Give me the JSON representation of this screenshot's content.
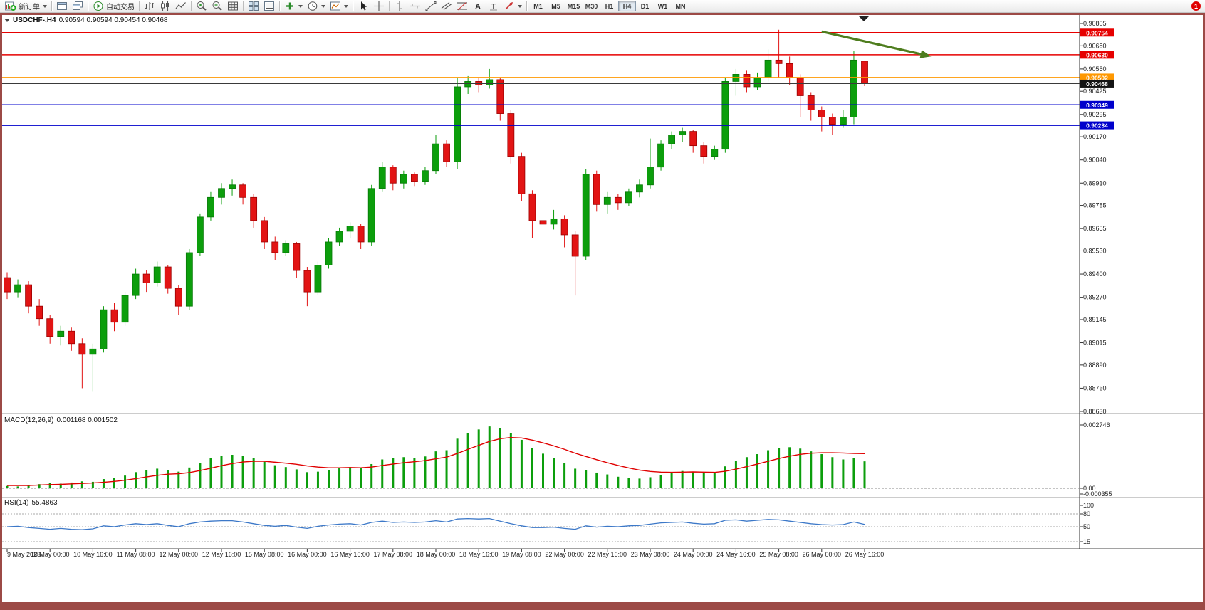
{
  "toolbar": {
    "groups": [
      [
        "new-order"
      ],
      [
        "chart-window",
        "cascade-windows"
      ],
      [
        "autotrading"
      ],
      [
        "bar-chart",
        "candlestick-chart",
        "line-chart"
      ],
      [
        "zoom-in",
        "zoom-out",
        "grid"
      ],
      [
        "tile-windows",
        "data-window"
      ],
      [
        "add-indicator",
        "clock",
        "template"
      ],
      [
        "cursor",
        "crosshair"
      ],
      [
        "vertical-line",
        "horizontal-line",
        "trend-line",
        "channel",
        "fibonacci",
        "text-tool",
        "label-tool",
        "arrow-tool"
      ]
    ],
    "labels": {
      "new-order": "新订单",
      "autotrading": "自动交易"
    },
    "carets": [
      "new-order",
      "add-indicator",
      "clock",
      "template",
      "arrow-tool"
    ],
    "tool_letters": {
      "text_tool": "A",
      "label_tool": "T"
    },
    "timeframes": [
      "M1",
      "M5",
      "M15",
      "M30",
      "H1",
      "H4",
      "D1",
      "W1",
      "MN"
    ],
    "active_timeframe": "H4",
    "notification_badge": "1"
  },
  "chart": {
    "symbol_period": "USDCHF-,H4",
    "ohlc": "0.90594 0.90594 0.90454 0.90468",
    "price_axis": [
      "0.90805",
      "0.90680",
      "0.90550",
      "0.90425",
      "0.90295",
      "0.90170",
      "0.90040",
      "0.89910",
      "0.89785",
      "0.89655",
      "0.89530",
      "0.89400",
      "0.89270",
      "0.89145",
      "0.89015",
      "0.88890",
      "0.88760",
      "0.88630"
    ],
    "hlines": [
      {
        "price": 0.90754,
        "label": "0.90754",
        "color": "#E60000"
      },
      {
        "price": 0.9063,
        "label": "0.90630",
        "color": "#E60000"
      },
      {
        "price": 0.90502,
        "label": "0.90502",
        "color": "#FF9800"
      },
      {
        "price": 0.90349,
        "label": "0.90349",
        "color": "#0000CC"
      },
      {
        "price": 0.90234,
        "label": "0.90234",
        "color": "#0000CC"
      }
    ],
    "bid": {
      "price": 0.90468,
      "label": "0.90468",
      "line_color": "#3a3a3a",
      "box_color": "#141414"
    },
    "annotation_arrow": {
      "from_bar": 76,
      "from_price": 0.9076,
      "to_bar": 85.5,
      "to_price": 0.9063,
      "color": "#4E7D1E"
    }
  },
  "macd": {
    "name": "MACD(12,26,9)",
    "values": "0.001168 0.001502",
    "axis": [
      "0.002746",
      "0.00",
      "-0.000355"
    ]
  },
  "rsi": {
    "name": "RSI(14)",
    "value": "55.4863",
    "axis": [
      "100",
      "80",
      "50",
      "15"
    ],
    "levels": [
      80,
      50,
      15
    ]
  },
  "chart_data": {
    "type": "candlestick",
    "symbol": "USDCHF",
    "period": "H4",
    "x_labels": [
      "9 May 2023",
      "10 May 00:00",
      "10 May 16:00",
      "11 May 08:00",
      "12 May 00:00",
      "12 May 16:00",
      "15 May 08:00",
      "16 May 00:00",
      "16 May 16:00",
      "17 May 08:00",
      "18 May 00:00",
      "18 May 16:00",
      "19 May 08:00",
      "22 May 00:00",
      "22 May 16:00",
      "23 May 08:00",
      "24 May 00:00",
      "24 May 16:00",
      "25 May 08:00",
      "26 May 00:00",
      "26 May 16:00"
    ],
    "candles": [
      [
        0.8938,
        0.8941,
        0.8926,
        0.893
      ],
      [
        0.893,
        0.8937,
        0.8927,
        0.8934
      ],
      [
        0.8934,
        0.8936,
        0.8918,
        0.8922
      ],
      [
        0.8922,
        0.8926,
        0.8911,
        0.8915
      ],
      [
        0.8915,
        0.8917,
        0.8901,
        0.8905
      ],
      [
        0.8905,
        0.8911,
        0.89,
        0.8908
      ],
      [
        0.8908,
        0.891,
        0.8897,
        0.8901
      ],
      [
        0.8901,
        0.8904,
        0.8876,
        0.8895
      ],
      [
        0.8895,
        0.8901,
        0.8874,
        0.8898
      ],
      [
        0.8898,
        0.8922,
        0.8896,
        0.892
      ],
      [
        0.892,
        0.8924,
        0.8908,
        0.8913
      ],
      [
        0.8913,
        0.893,
        0.8911,
        0.8928
      ],
      [
        0.8928,
        0.8943,
        0.8926,
        0.894
      ],
      [
        0.894,
        0.8942,
        0.893,
        0.8935
      ],
      [
        0.8935,
        0.8947,
        0.8933,
        0.8944
      ],
      [
        0.8944,
        0.8945,
        0.8929,
        0.8932
      ],
      [
        0.8932,
        0.8934,
        0.8917,
        0.8922
      ],
      [
        0.8922,
        0.8954,
        0.892,
        0.8952
      ],
      [
        0.8952,
        0.8974,
        0.895,
        0.8972
      ],
      [
        0.8972,
        0.8986,
        0.897,
        0.8983
      ],
      [
        0.8983,
        0.8991,
        0.8979,
        0.8988
      ],
      [
        0.8988,
        0.8993,
        0.8984,
        0.899
      ],
      [
        0.899,
        0.8991,
        0.8979,
        0.8983
      ],
      [
        0.8983,
        0.8985,
        0.8966,
        0.897
      ],
      [
        0.897,
        0.8972,
        0.8954,
        0.8958
      ],
      [
        0.8958,
        0.8961,
        0.8948,
        0.8952
      ],
      [
        0.8952,
        0.8959,
        0.895,
        0.8957
      ],
      [
        0.8957,
        0.8958,
        0.8938,
        0.8942
      ],
      [
        0.8942,
        0.8944,
        0.8922,
        0.893
      ],
      [
        0.893,
        0.8947,
        0.8928,
        0.8945
      ],
      [
        0.8945,
        0.896,
        0.8943,
        0.8958
      ],
      [
        0.8958,
        0.8966,
        0.8956,
        0.8964
      ],
      [
        0.8964,
        0.8969,
        0.896,
        0.8967
      ],
      [
        0.8967,
        0.8968,
        0.8954,
        0.8958
      ],
      [
        0.8958,
        0.899,
        0.8956,
        0.8988
      ],
      [
        0.8988,
        0.9003,
        0.8986,
        0.9
      ],
      [
        0.9,
        0.9001,
        0.8987,
        0.8991
      ],
      [
        0.8991,
        0.8998,
        0.8988,
        0.8996
      ],
      [
        0.8996,
        0.8997,
        0.8989,
        0.8992
      ],
      [
        0.8992,
        0.9,
        0.899,
        0.8998
      ],
      [
        0.8998,
        0.9018,
        0.8996,
        0.9013
      ],
      [
        0.9013,
        0.9015,
        0.9,
        0.9003
      ],
      [
        0.9003,
        0.905,
        0.8999,
        0.9045
      ],
      [
        0.9045,
        0.9051,
        0.9041,
        0.9048
      ],
      [
        0.9048,
        0.905,
        0.9042,
        0.9046
      ],
      [
        0.9046,
        0.9055,
        0.9044,
        0.9049
      ],
      [
        0.9049,
        0.905,
        0.9026,
        0.903
      ],
      [
        0.903,
        0.9032,
        0.9002,
        0.9006
      ],
      [
        0.9006,
        0.9008,
        0.8981,
        0.8985
      ],
      [
        0.8985,
        0.8987,
        0.896,
        0.897
      ],
      [
        0.897,
        0.8975,
        0.8964,
        0.8968
      ],
      [
        0.8968,
        0.8976,
        0.8965,
        0.8971
      ],
      [
        0.8971,
        0.8973,
        0.8955,
        0.8962
      ],
      [
        0.8962,
        0.8964,
        0.8928,
        0.895
      ],
      [
        0.895,
        0.8999,
        0.8948,
        0.8996
      ],
      [
        0.8996,
        0.8998,
        0.8975,
        0.8979
      ],
      [
        0.8979,
        0.8986,
        0.8974,
        0.8983
      ],
      [
        0.8983,
        0.8985,
        0.8976,
        0.898
      ],
      [
        0.898,
        0.8988,
        0.8978,
        0.8986
      ],
      [
        0.8986,
        0.8993,
        0.8983,
        0.899
      ],
      [
        0.899,
        0.9016,
        0.8988,
        0.9
      ],
      [
        0.9,
        0.9015,
        0.8998,
        0.9013
      ],
      [
        0.9013,
        0.902,
        0.901,
        0.9018
      ],
      [
        0.9018,
        0.9022,
        0.9014,
        0.902
      ],
      [
        0.902,
        0.9021,
        0.9008,
        0.9012
      ],
      [
        0.9012,
        0.9014,
        0.9002,
        0.9006
      ],
      [
        0.9006,
        0.9012,
        0.9004,
        0.901
      ],
      [
        0.901,
        0.905,
        0.9008,
        0.9048
      ],
      [
        0.9048,
        0.9055,
        0.904,
        0.9052
      ],
      [
        0.9052,
        0.9054,
        0.9042,
        0.9045
      ],
      [
        0.9045,
        0.9053,
        0.9043,
        0.905
      ],
      [
        0.905,
        0.9066,
        0.9048,
        0.906
      ],
      [
        0.906,
        0.9077,
        0.905,
        0.9058
      ],
      [
        0.9058,
        0.9062,
        0.9046,
        0.905
      ],
      [
        0.905,
        0.9052,
        0.9028,
        0.904
      ],
      [
        0.904,
        0.9042,
        0.9026,
        0.9032
      ],
      [
        0.9032,
        0.9034,
        0.902,
        0.9028
      ],
      [
        0.9028,
        0.903,
        0.9018,
        0.9024
      ],
      [
        0.9024,
        0.9032,
        0.9022,
        0.9028
      ],
      [
        0.9028,
        0.9065,
        0.9024,
        0.906
      ],
      [
        0.90594,
        0.90594,
        0.90454,
        0.90468
      ]
    ],
    "macd_histogram": [
      0.0001,
      8e-05,
      0.00012,
      0.00018,
      0.00022,
      0.0002,
      0.00025,
      0.0003,
      0.00028,
      0.0004,
      0.00045,
      0.00055,
      0.0007,
      0.00078,
      0.00085,
      0.0008,
      0.00072,
      0.0009,
      0.0011,
      0.0013,
      0.0014,
      0.00145,
      0.0014,
      0.0013,
      0.00115,
      0.001,
      0.00092,
      0.00082,
      0.0007,
      0.00072,
      0.0008,
      0.00088,
      0.00092,
      0.00088,
      0.00105,
      0.00125,
      0.0013,
      0.00135,
      0.00132,
      0.00138,
      0.0016,
      0.00165,
      0.00215,
      0.0024,
      0.00255,
      0.00268,
      0.00262,
      0.0024,
      0.0021,
      0.00175,
      0.0015,
      0.00132,
      0.0011,
      0.00085,
      0.0008,
      0.00068,
      0.0006,
      0.0005,
      0.00045,
      0.00042,
      0.00048,
      0.00058,
      0.00068,
      0.00075,
      0.00072,
      0.00065,
      0.00065,
      0.00095,
      0.0012,
      0.00135,
      0.00148,
      0.00165,
      0.00175,
      0.00178,
      0.00172,
      0.0016,
      0.00148,
      0.00135,
      0.00125,
      0.00132,
      0.001168
    ],
    "macd_signal": [
      0.00012,
      0.00012,
      0.00012,
      0.00014,
      0.00016,
      0.00017,
      0.00019,
      0.00021,
      0.00023,
      0.00026,
      0.0003,
      0.00035,
      0.00042,
      0.00049,
      0.00056,
      0.00061,
      0.00063,
      0.00068,
      0.00077,
      0.00087,
      0.00098,
      0.00107,
      0.00114,
      0.00117,
      0.00117,
      0.00113,
      0.00109,
      0.00104,
      0.00097,
      0.00092,
      0.00089,
      0.00089,
      0.0009,
      0.00089,
      0.00092,
      0.00099,
      0.00105,
      0.00111,
      0.00115,
      0.0012,
      0.00128,
      0.00135,
      0.00151,
      0.00169,
      0.00186,
      0.00203,
      0.00215,
      0.0022,
      0.00218,
      0.00209,
      0.00197,
      0.00184,
      0.00169,
      0.00152,
      0.00138,
      0.00124,
      0.00111,
      0.00099,
      0.00088,
      0.00079,
      0.00073,
      0.0007,
      0.00069,
      0.0007,
      0.00071,
      0.0007,
      0.00069,
      0.00074,
      0.00083,
      0.00094,
      0.00105,
      0.00117,
      0.00129,
      0.00139,
      0.00147,
      0.00152,
      0.00154,
      0.00154,
      0.00153,
      0.00151,
      0.001502
    ],
    "rsi": [
      50,
      51,
      48,
      46,
      44,
      46,
      44,
      43,
      45,
      52,
      50,
      54,
      57,
      55,
      57,
      53,
      50,
      57,
      61,
      63,
      64,
      64,
      61,
      57,
      53,
      51,
      53,
      49,
      46,
      51,
      54,
      56,
      57,
      54,
      60,
      63,
      60,
      61,
      60,
      61,
      64,
      61,
      68,
      69,
      68,
      69,
      63,
      57,
      52,
      48,
      48,
      49,
      46,
      44,
      52,
      49,
      51,
      50,
      52,
      53,
      56,
      59,
      60,
      61,
      58,
      56,
      57,
      65,
      66,
      63,
      65,
      67,
      66,
      63,
      60,
      57,
      55,
      54,
      55,
      61,
      55.49
    ]
  }
}
